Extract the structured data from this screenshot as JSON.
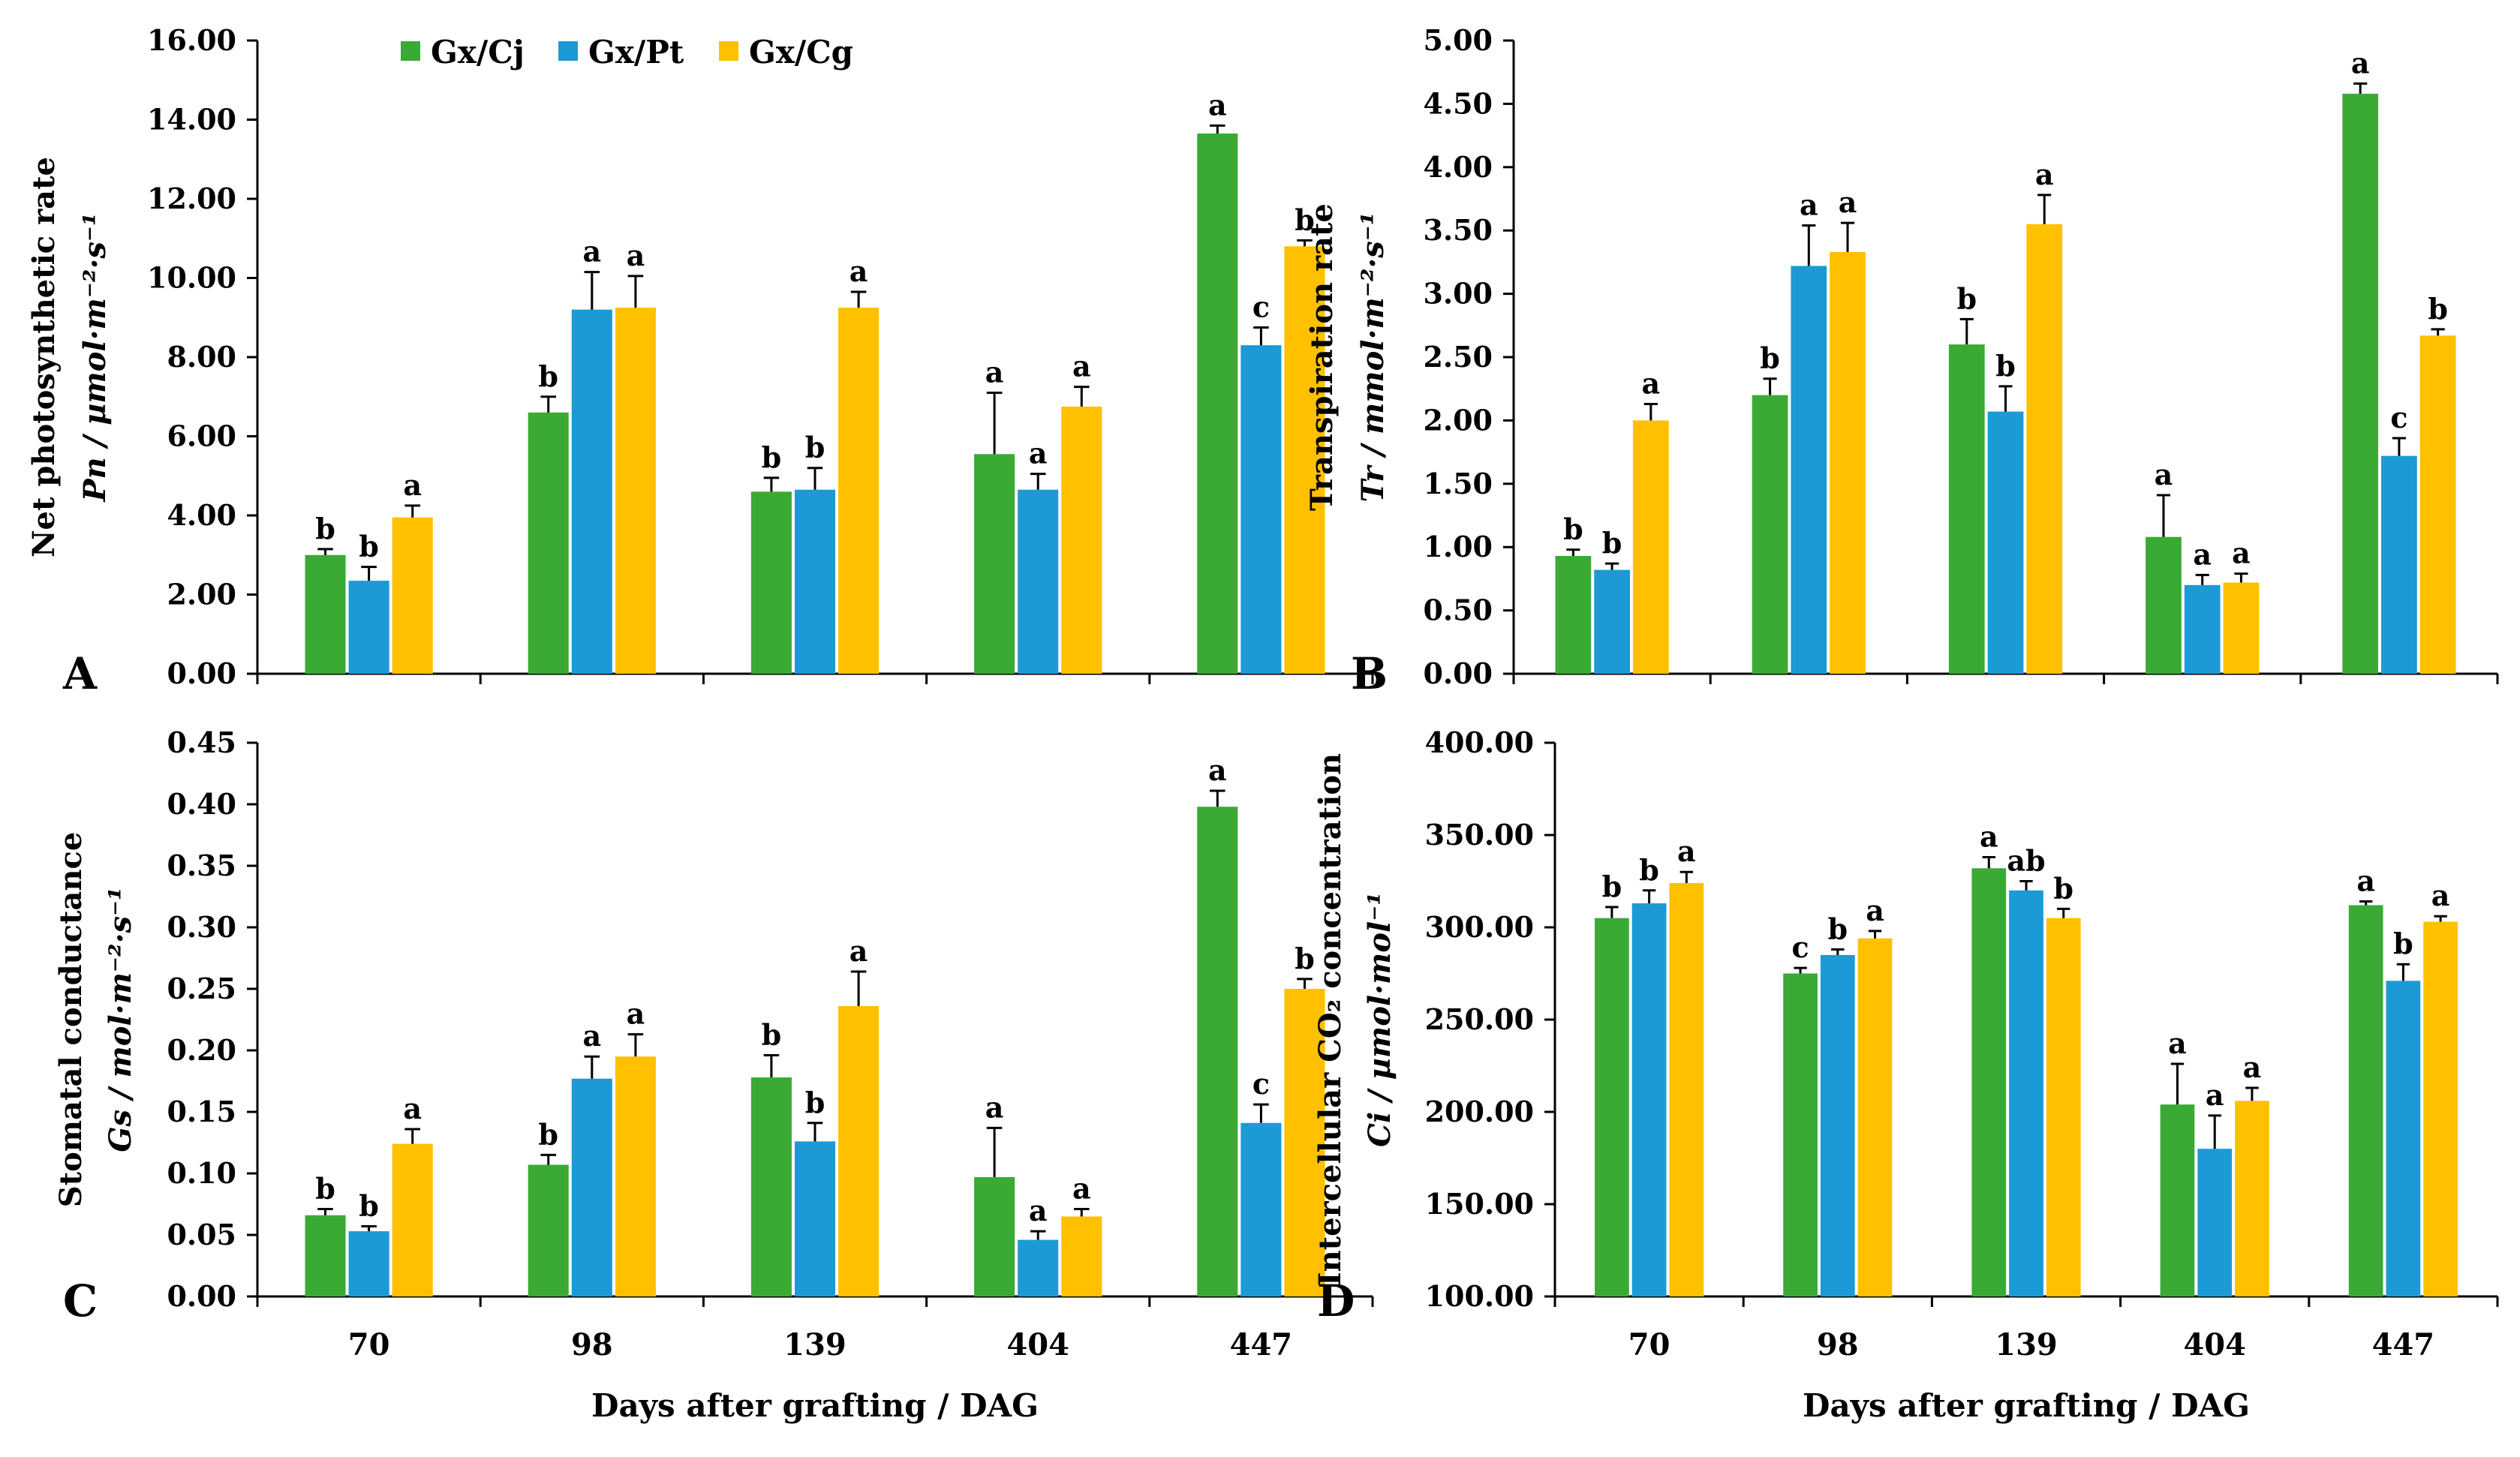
{
  "colors": {
    "s0": "#3aaa35",
    "s1": "#1b9ad6",
    "s2": "#ffc000"
  },
  "x_axis_label": "Days after grafting / DAG",
  "chart_data": [
    {
      "type": "bar",
      "panel_label": "A",
      "categories": [
        "70",
        "98",
        "139",
        "404",
        "447"
      ],
      "ylabel_line1": "Net photosynthetic rate",
      "ylabel_line2": "Pn / µmol·m⁻²·s⁻¹",
      "ylim": [
        0,
        16
      ],
      "yticks": [
        "0.00",
        "2.00",
        "4.00",
        "6.00",
        "8.00",
        "10.00",
        "12.00",
        "14.00",
        "16.00"
      ],
      "xlabel": "",
      "series": [
        {
          "name": "Gx/Cj",
          "values": [
            3.0,
            6.6,
            4.6,
            5.55,
            13.65
          ],
          "errors": [
            0.15,
            0.4,
            0.35,
            1.55,
            0.2
          ],
          "letters": [
            "b",
            "b",
            "b",
            "a",
            "a"
          ]
        },
        {
          "name": "Gx/Pt",
          "values": [
            2.35,
            9.2,
            4.65,
            4.65,
            8.3
          ],
          "errors": [
            0.35,
            0.95,
            0.55,
            0.4,
            0.45
          ],
          "letters": [
            "b",
            "a",
            "b",
            "a",
            "c"
          ]
        },
        {
          "name": "Gx/Cg",
          "values": [
            3.95,
            9.25,
            9.25,
            6.75,
            10.8
          ],
          "errors": [
            0.3,
            0.8,
            0.4,
            0.5,
            0.15
          ],
          "letters": [
            "a",
            "a",
            "a",
            "a",
            "b"
          ]
        }
      ]
    },
    {
      "type": "bar",
      "panel_label": "B",
      "categories": [
        "70",
        "98",
        "139",
        "404",
        "447"
      ],
      "ylabel_line1": "Transpiration rate",
      "ylabel_line2": "Tr / mmol·m⁻²·s⁻¹",
      "ylim": [
        0,
        5
      ],
      "yticks": [
        "0.00",
        "0.50",
        "1.00",
        "1.50",
        "2.00",
        "2.50",
        "3.00",
        "3.50",
        "4.00",
        "4.50",
        "5.00"
      ],
      "xlabel": "",
      "series": [
        {
          "name": "Gx/Cj",
          "values": [
            0.93,
            2.2,
            2.6,
            1.08,
            4.58
          ],
          "errors": [
            0.05,
            0.13,
            0.2,
            0.33,
            0.08
          ],
          "letters": [
            "b",
            "b",
            "b",
            "a",
            "a"
          ]
        },
        {
          "name": "Gx/Pt",
          "values": [
            0.82,
            3.22,
            2.07,
            0.7,
            1.72
          ],
          "errors": [
            0.05,
            0.32,
            0.2,
            0.08,
            0.14
          ],
          "letters": [
            "b",
            "a",
            "b",
            "a",
            "c"
          ]
        },
        {
          "name": "Gx/Cg",
          "values": [
            2.0,
            3.33,
            3.55,
            0.72,
            2.67
          ],
          "errors": [
            0.13,
            0.23,
            0.23,
            0.07,
            0.05
          ],
          "letters": [
            "a",
            "a",
            "a",
            "a",
            "b"
          ]
        }
      ]
    },
    {
      "type": "bar",
      "panel_label": "C",
      "categories": [
        "70",
        "98",
        "139",
        "404",
        "447"
      ],
      "ylabel_line1": "Stomatal conductance",
      "ylabel_line2": "Gs / mol·m⁻²·s⁻¹",
      "ylim": [
        0,
        0.45
      ],
      "yticks": [
        "0.00",
        "0.05",
        "0.10",
        "0.15",
        "0.20",
        "0.25",
        "0.30",
        "0.35",
        "0.40",
        "0.45"
      ],
      "xlabel": "Days after grafting / DAG",
      "series": [
        {
          "name": "Gx/Cj",
          "values": [
            0.066,
            0.107,
            0.178,
            0.097,
            0.398
          ],
          "errors": [
            0.005,
            0.008,
            0.018,
            0.04,
            0.013
          ],
          "letters": [
            "b",
            "b",
            "b",
            "a",
            "a"
          ]
        },
        {
          "name": "Gx/Pt",
          "values": [
            0.053,
            0.177,
            0.126,
            0.046,
            0.141
          ],
          "errors": [
            0.004,
            0.018,
            0.015,
            0.007,
            0.015
          ],
          "letters": [
            "b",
            "a",
            "b",
            "a",
            "c"
          ]
        },
        {
          "name": "Gx/Cg",
          "values": [
            0.124,
            0.195,
            0.236,
            0.065,
            0.25
          ],
          "errors": [
            0.012,
            0.018,
            0.028,
            0.006,
            0.008
          ],
          "letters": [
            "a",
            "a",
            "a",
            "a",
            "b"
          ]
        }
      ]
    },
    {
      "type": "bar",
      "panel_label": "D",
      "categories": [
        "70",
        "98",
        "139",
        "404",
        "447"
      ],
      "ylabel_line1": "Intercellular CO₂ concentration",
      "ylabel_line2": "Ci / µmol·mol⁻¹",
      "ylim": [
        100,
        400
      ],
      "yticks": [
        "100.00",
        "150.00",
        "200.00",
        "250.00",
        "300.00",
        "350.00",
        "400.00"
      ],
      "xlabel": "Days after grafting / DAG",
      "series": [
        {
          "name": "Gx/Cj",
          "values": [
            305,
            275,
            332,
            204,
            312
          ],
          "errors": [
            6,
            3,
            6,
            22,
            2
          ],
          "letters": [
            "b",
            "c",
            "a",
            "a",
            "a"
          ]
        },
        {
          "name": "Gx/Pt",
          "values": [
            313,
            285,
            320,
            180,
            271
          ],
          "errors": [
            7,
            3,
            5,
            18,
            9
          ],
          "letters": [
            "b",
            "b",
            "ab",
            "a",
            "b"
          ]
        },
        {
          "name": "Gx/Cg",
          "values": [
            324,
            294,
            305,
            206,
            303
          ],
          "errors": [
            6,
            4,
            5,
            7,
            3
          ],
          "letters": [
            "a",
            "a",
            "b",
            "a",
            "a"
          ]
        }
      ]
    }
  ]
}
